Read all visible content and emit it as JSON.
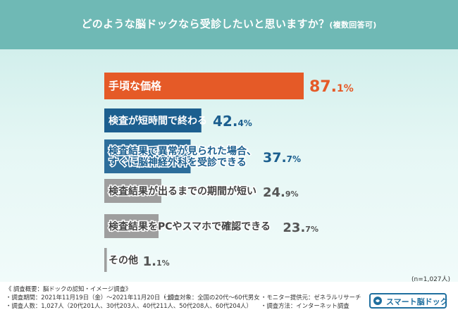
{
  "header": {
    "title": "どのような脳ドックなら受診したいと思いますか？",
    "subtitle": "(複数回答可)"
  },
  "sample_note": "(n=1,027人)",
  "colors": {
    "header_bg": "#6fb9b5",
    "bar_top": "#e55a27",
    "bar_second": "#1c5f8f",
    "bar_third": "#2d6e9b",
    "bar_gray": "#9e9e9e",
    "value_top": "#e55a27",
    "value_blue": "#1c5f8f",
    "value_gray": "#555555"
  },
  "chart_data": {
    "type": "bar",
    "orientation": "horizontal",
    "unit": "%",
    "xlim": [
      0,
      100
    ],
    "categories": [
      [
        "手頃な価格"
      ],
      [
        "検査が短時間で終わる"
      ],
      [
        "検査結果で異常が見られた場合、",
        "すぐに脳神経外科を受診できる"
      ],
      [
        "検査結果が出るまでの期間が短い"
      ],
      [
        "検査結果をPCやスマホで確認できる"
      ],
      [
        "その他"
      ]
    ],
    "values": [
      87.1,
      42.4,
      37.7,
      24.9,
      23.7,
      1.1
    ],
    "value_labels": [
      [
        "87.",
        "1",
        "%"
      ],
      [
        "42.",
        "4",
        "%"
      ],
      [
        "37.",
        "7",
        "%"
      ],
      [
        "24.",
        "9",
        "%"
      ],
      [
        "23.",
        "7",
        "%"
      ],
      [
        "1.",
        "1",
        "%"
      ]
    ]
  },
  "footer": {
    "survey_heading": "《 調査概要：脳ドックの認知・イメージ調査》",
    "period": "・調査期間：2021年11月19日（金）〜2021年11月20日（土）",
    "target": "・調査対象：全国の20代〜60代男女",
    "provider": "・モニター提供元：ゼネラルリサーチ",
    "respondents": "・調査人数：1,027人（20代201人、30代203人、40代211人、50代208人、60代204人）",
    "method": "・調査方法：インターネット調査",
    "logo_text": "スマート脳ドック"
  }
}
